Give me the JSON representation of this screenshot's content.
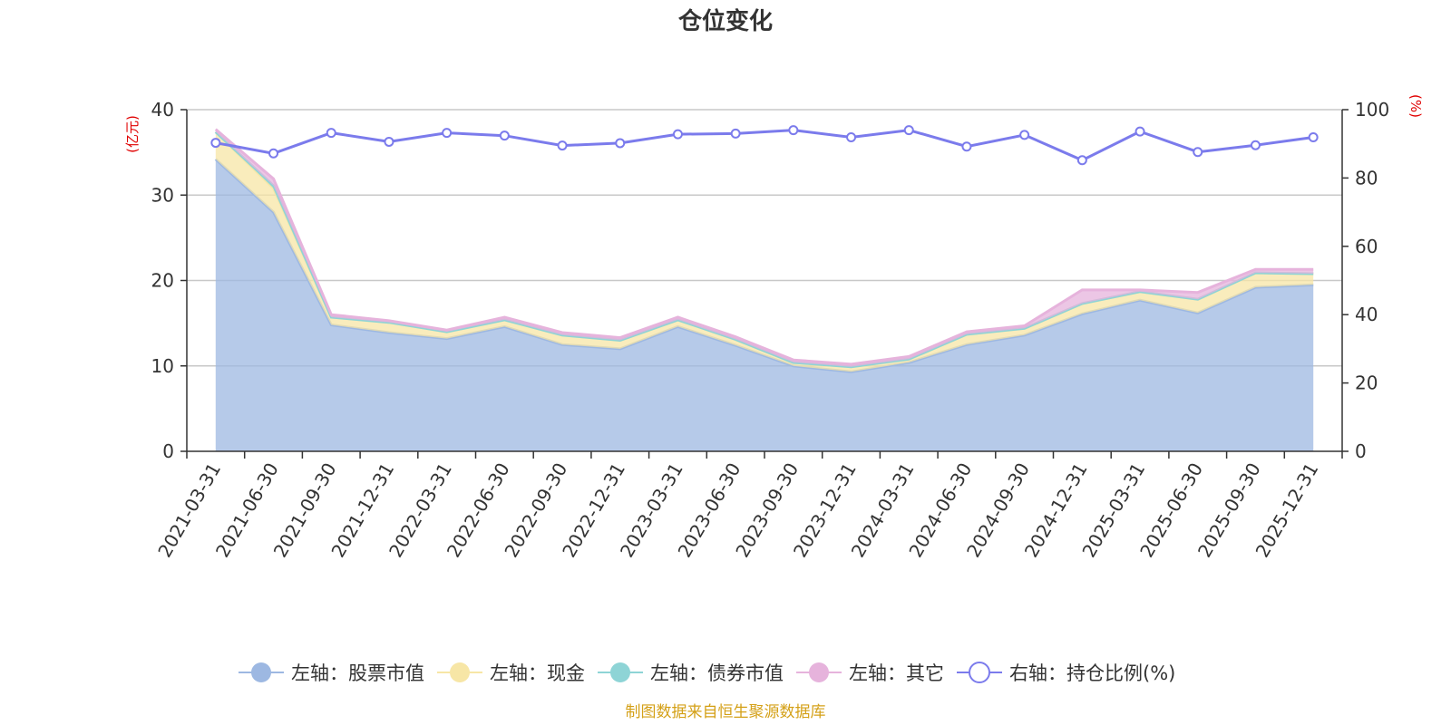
{
  "title": "仓位变化",
  "source": "制图数据来自恒生聚源数据库",
  "chart_data": {
    "type": "area",
    "title": "仓位变化",
    "x": [
      "2021-03-31",
      "2021-06-30",
      "2021-09-30",
      "2021-12-31",
      "2022-03-31",
      "2022-06-30",
      "2022-09-30",
      "2022-12-31",
      "2023-03-31",
      "2023-06-30",
      "2023-09-30",
      "2023-12-31",
      "2024-03-31",
      "2024-06-30",
      "2024-09-30",
      "2024-12-31",
      "2025-03-31",
      "2025-06-30",
      "2025-09-30",
      "2025-12-31"
    ],
    "left_axis": {
      "unit": "(亿元)",
      "min": 0,
      "max": 40,
      "ticks": [
        0,
        10,
        20,
        30,
        40
      ]
    },
    "right_axis": {
      "unit": "(%)",
      "min": 0,
      "max": 100,
      "ticks": [
        0,
        20,
        40,
        60,
        80,
        100
      ]
    },
    "grid": true,
    "legend_position": "bottom",
    "series": [
      {
        "name": "左轴：股票市值",
        "axis": "left",
        "kind": "area",
        "color": "#9db8e2",
        "values": [
          34.2,
          28.0,
          14.8,
          13.9,
          13.2,
          14.6,
          12.5,
          12.0,
          14.6,
          12.4,
          10.0,
          9.3,
          10.4,
          12.5,
          13.6,
          16.1,
          17.7,
          16.2,
          19.2,
          19.5
        ]
      },
      {
        "name": "左轴：现金",
        "axis": "left",
        "kind": "area",
        "color": "#f7e6a6",
        "values": [
          3.2,
          2.8,
          0.9,
          1.2,
          0.8,
          0.8,
          1.1,
          1.0,
          0.8,
          0.7,
          0.4,
          0.6,
          0.4,
          1.2,
          0.8,
          1.2,
          1.0,
          1.6,
          1.7,
          1.3
        ]
      },
      {
        "name": "左轴：债券市值",
        "axis": "left",
        "kind": "area",
        "color": "#8ed4d6",
        "values": [
          0,
          0.3,
          0,
          0,
          0,
          0,
          0,
          0,
          0,
          0,
          0,
          0,
          0,
          0,
          0,
          0,
          0,
          0,
          0,
          0
        ]
      },
      {
        "name": "左轴：其它",
        "axis": "left",
        "kind": "area",
        "color": "#e6b3dc",
        "values": [
          0.3,
          0.8,
          0.3,
          0.2,
          0.2,
          0.3,
          0.3,
          0.3,
          0.3,
          0.3,
          0.3,
          0.3,
          0.3,
          0.3,
          0.3,
          1.6,
          0.2,
          0.8,
          0.4,
          0.5
        ]
      },
      {
        "name": "右轴：持仓比例(%)",
        "axis": "right",
        "kind": "line",
        "color": "#7b7bec",
        "values": [
          90.3,
          87.2,
          93.2,
          90.6,
          93.2,
          92.4,
          89.5,
          90.2,
          92.8,
          93.0,
          94.0,
          91.9,
          94.0,
          89.2,
          92.6,
          85.2,
          93.6,
          87.6,
          89.6,
          91.9
        ]
      }
    ]
  }
}
